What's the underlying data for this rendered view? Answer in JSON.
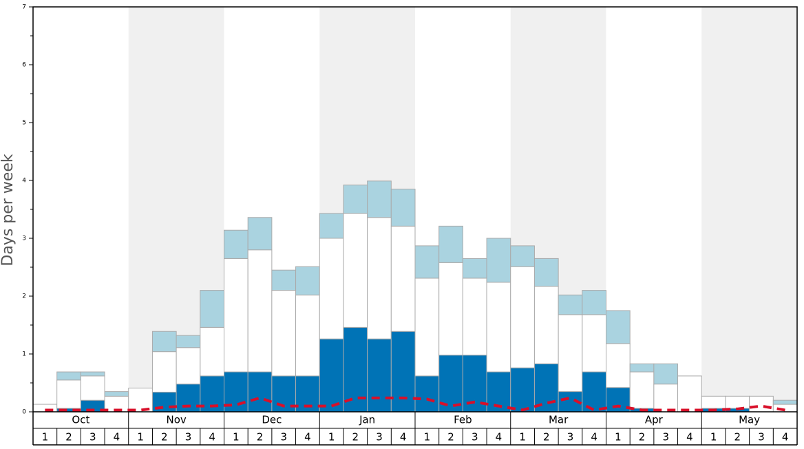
{
  "chart_data": {
    "type": "bar",
    "stacked": true,
    "y_label": "Days per week",
    "months": [
      "Oct",
      "Nov",
      "Dec",
      "Jan",
      "Feb",
      "Mar",
      "Apr",
      "May"
    ],
    "categories": [
      "1",
      "2",
      "3",
      "4",
      "1",
      "2",
      "3",
      "4",
      "1",
      "2",
      "3",
      "4",
      "1",
      "2",
      "3",
      "4",
      "1",
      "2",
      "3",
      "4",
      "1",
      "2",
      "3",
      "4",
      "1",
      "2",
      "3",
      "4",
      "1",
      "2",
      "3",
      "4"
    ],
    "series": [
      {
        "color": "#0073b6",
        "values": [
          0,
          0.06,
          0.2,
          0,
          0,
          0.34,
          0.48,
          0.62,
          0.69,
          0.69,
          0.62,
          0.62,
          1.26,
          1.46,
          1.26,
          1.39,
          0.62,
          0.98,
          0.98,
          0.69,
          0.76,
          0.83,
          0.35,
          0.69,
          0.42,
          0.06,
          0,
          0,
          0.06,
          0.06,
          0,
          0
        ]
      },
      {
        "color": "#ffffff",
        "values": [
          0.13,
          0.49,
          0.42,
          0.27,
          0.41,
          0.7,
          0.63,
          0.84,
          1.96,
          2.11,
          1.48,
          1.4,
          1.74,
          1.97,
          2.1,
          1.82,
          1.69,
          1.6,
          1.33,
          1.55,
          1.75,
          1.34,
          1.33,
          0.99,
          0.76,
          0.63,
          0.48,
          0.62,
          0.21,
          0.21,
          0.27,
          0.13
        ]
      },
      {
        "color": "#aad3e0",
        "values": [
          0,
          0.14,
          0.07,
          0.08,
          0,
          0.35,
          0.21,
          0.64,
          0.49,
          0.56,
          0.35,
          0.49,
          0.43,
          0.49,
          0.63,
          0.64,
          0.56,
          0.63,
          0.34,
          0.76,
          0.36,
          0.48,
          0.34,
          0.42,
          0.57,
          0.14,
          0.35,
          0,
          0,
          0,
          0,
          0.07
        ]
      }
    ],
    "line": {
      "type": "line",
      "color": "#d8102a",
      "dashed": true,
      "values": [
        0.03,
        0.03,
        0.03,
        0.03,
        0.03,
        0.08,
        0.1,
        0.1,
        0.12,
        0.24,
        0.1,
        0.1,
        0.1,
        0.24,
        0.24,
        0.24,
        0.22,
        0.1,
        0.17,
        0.1,
        0.03,
        0.15,
        0.24,
        0.03,
        0.1,
        0.03,
        0.03,
        0.03,
        0.03,
        0.05,
        0.1,
        0.03
      ]
    },
    "ylim": [
      0,
      7
    ],
    "yticks": [
      0,
      1,
      2,
      3,
      4,
      5,
      6,
      7
    ],
    "yticks_minor": [
      0.5,
      1.5,
      2.5,
      3.5,
      4.5,
      5.5,
      6.5
    ]
  }
}
